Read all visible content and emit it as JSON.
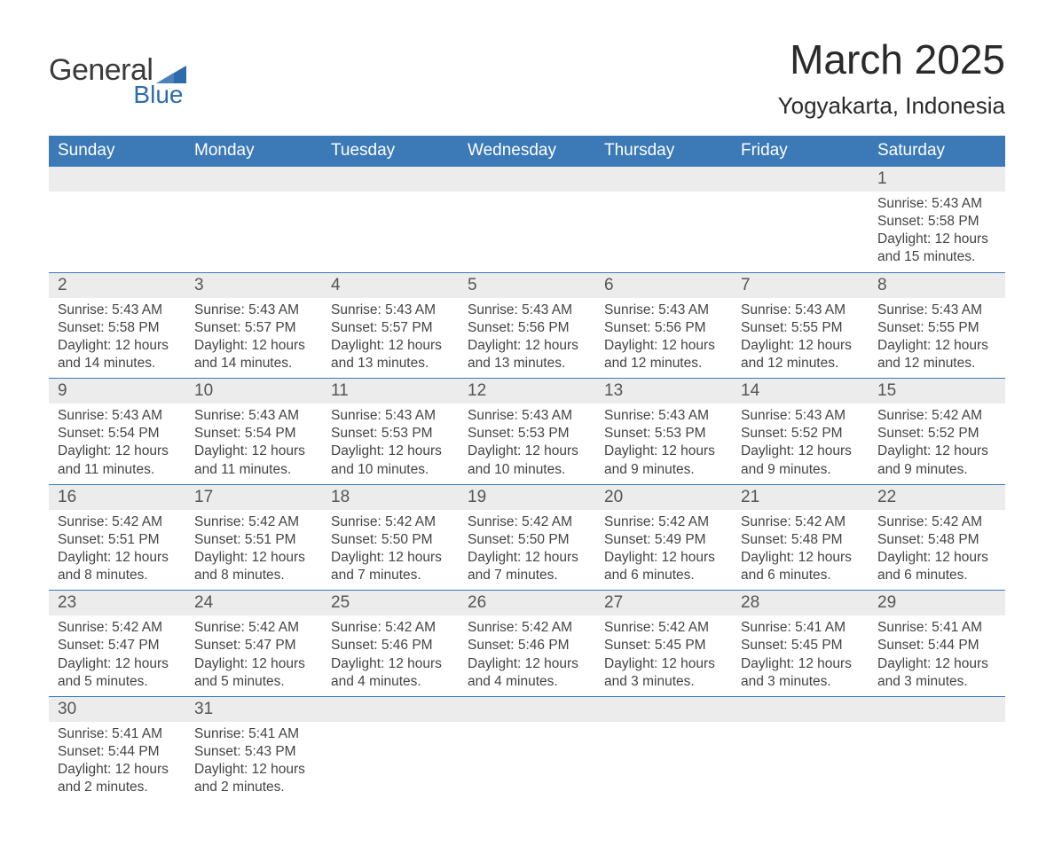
{
  "logo": {
    "word1": "General",
    "word2": "Blue",
    "text_color": "#3a3a3a",
    "accent_color": "#2e6bab"
  },
  "header": {
    "month_title": "March 2025",
    "location": "Yogyakarta, Indonesia"
  },
  "colors": {
    "header_bg": "#3b79b7",
    "header_text": "#ffffff",
    "daynum_bg": "#ececec",
    "body_text": "#444444",
    "border": "#3b79b7",
    "page_bg": "#ffffff"
  },
  "typography": {
    "title_fontsize": 46,
    "location_fontsize": 26,
    "weekday_fontsize": 19,
    "daynum_fontsize": 19,
    "cell_fontsize": 15.5
  },
  "layout": {
    "columns": 7,
    "rows": 6,
    "first_day_column_index": 6
  },
  "weekdays": [
    "Sunday",
    "Monday",
    "Tuesday",
    "Wednesday",
    "Thursday",
    "Friday",
    "Saturday"
  ],
  "days": [
    {
      "n": "1",
      "sr": "5:43 AM",
      "ss": "5:58 PM",
      "dl": "12 hours and 15 minutes."
    },
    {
      "n": "2",
      "sr": "5:43 AM",
      "ss": "5:58 PM",
      "dl": "12 hours and 14 minutes."
    },
    {
      "n": "3",
      "sr": "5:43 AM",
      "ss": "5:57 PM",
      "dl": "12 hours and 14 minutes."
    },
    {
      "n": "4",
      "sr": "5:43 AM",
      "ss": "5:57 PM",
      "dl": "12 hours and 13 minutes."
    },
    {
      "n": "5",
      "sr": "5:43 AM",
      "ss": "5:56 PM",
      "dl": "12 hours and 13 minutes."
    },
    {
      "n": "6",
      "sr": "5:43 AM",
      "ss": "5:56 PM",
      "dl": "12 hours and 12 minutes."
    },
    {
      "n": "7",
      "sr": "5:43 AM",
      "ss": "5:55 PM",
      "dl": "12 hours and 12 minutes."
    },
    {
      "n": "8",
      "sr": "5:43 AM",
      "ss": "5:55 PM",
      "dl": "12 hours and 12 minutes."
    },
    {
      "n": "9",
      "sr": "5:43 AM",
      "ss": "5:54 PM",
      "dl": "12 hours and 11 minutes."
    },
    {
      "n": "10",
      "sr": "5:43 AM",
      "ss": "5:54 PM",
      "dl": "12 hours and 11 minutes."
    },
    {
      "n": "11",
      "sr": "5:43 AM",
      "ss": "5:53 PM",
      "dl": "12 hours and 10 minutes."
    },
    {
      "n": "12",
      "sr": "5:43 AM",
      "ss": "5:53 PM",
      "dl": "12 hours and 10 minutes."
    },
    {
      "n": "13",
      "sr": "5:43 AM",
      "ss": "5:53 PM",
      "dl": "12 hours and 9 minutes."
    },
    {
      "n": "14",
      "sr": "5:43 AM",
      "ss": "5:52 PM",
      "dl": "12 hours and 9 minutes."
    },
    {
      "n": "15",
      "sr": "5:42 AM",
      "ss": "5:52 PM",
      "dl": "12 hours and 9 minutes."
    },
    {
      "n": "16",
      "sr": "5:42 AM",
      "ss": "5:51 PM",
      "dl": "12 hours and 8 minutes."
    },
    {
      "n": "17",
      "sr": "5:42 AM",
      "ss": "5:51 PM",
      "dl": "12 hours and 8 minutes."
    },
    {
      "n": "18",
      "sr": "5:42 AM",
      "ss": "5:50 PM",
      "dl": "12 hours and 7 minutes."
    },
    {
      "n": "19",
      "sr": "5:42 AM",
      "ss": "5:50 PM",
      "dl": "12 hours and 7 minutes."
    },
    {
      "n": "20",
      "sr": "5:42 AM",
      "ss": "5:49 PM",
      "dl": "12 hours and 6 minutes."
    },
    {
      "n": "21",
      "sr": "5:42 AM",
      "ss": "5:48 PM",
      "dl": "12 hours and 6 minutes."
    },
    {
      "n": "22",
      "sr": "5:42 AM",
      "ss": "5:48 PM",
      "dl": "12 hours and 6 minutes."
    },
    {
      "n": "23",
      "sr": "5:42 AM",
      "ss": "5:47 PM",
      "dl": "12 hours and 5 minutes."
    },
    {
      "n": "24",
      "sr": "5:42 AM",
      "ss": "5:47 PM",
      "dl": "12 hours and 5 minutes."
    },
    {
      "n": "25",
      "sr": "5:42 AM",
      "ss": "5:46 PM",
      "dl": "12 hours and 4 minutes."
    },
    {
      "n": "26",
      "sr": "5:42 AM",
      "ss": "5:46 PM",
      "dl": "12 hours and 4 minutes."
    },
    {
      "n": "27",
      "sr": "5:42 AM",
      "ss": "5:45 PM",
      "dl": "12 hours and 3 minutes."
    },
    {
      "n": "28",
      "sr": "5:41 AM",
      "ss": "5:45 PM",
      "dl": "12 hours and 3 minutes."
    },
    {
      "n": "29",
      "sr": "5:41 AM",
      "ss": "5:44 PM",
      "dl": "12 hours and 3 minutes."
    },
    {
      "n": "30",
      "sr": "5:41 AM",
      "ss": "5:44 PM",
      "dl": "12 hours and 2 minutes."
    },
    {
      "n": "31",
      "sr": "5:41 AM",
      "ss": "5:43 PM",
      "dl": "12 hours and 2 minutes."
    }
  ],
  "labels": {
    "sunrise": "Sunrise:",
    "sunset": "Sunset:",
    "daylight": "Daylight:"
  }
}
